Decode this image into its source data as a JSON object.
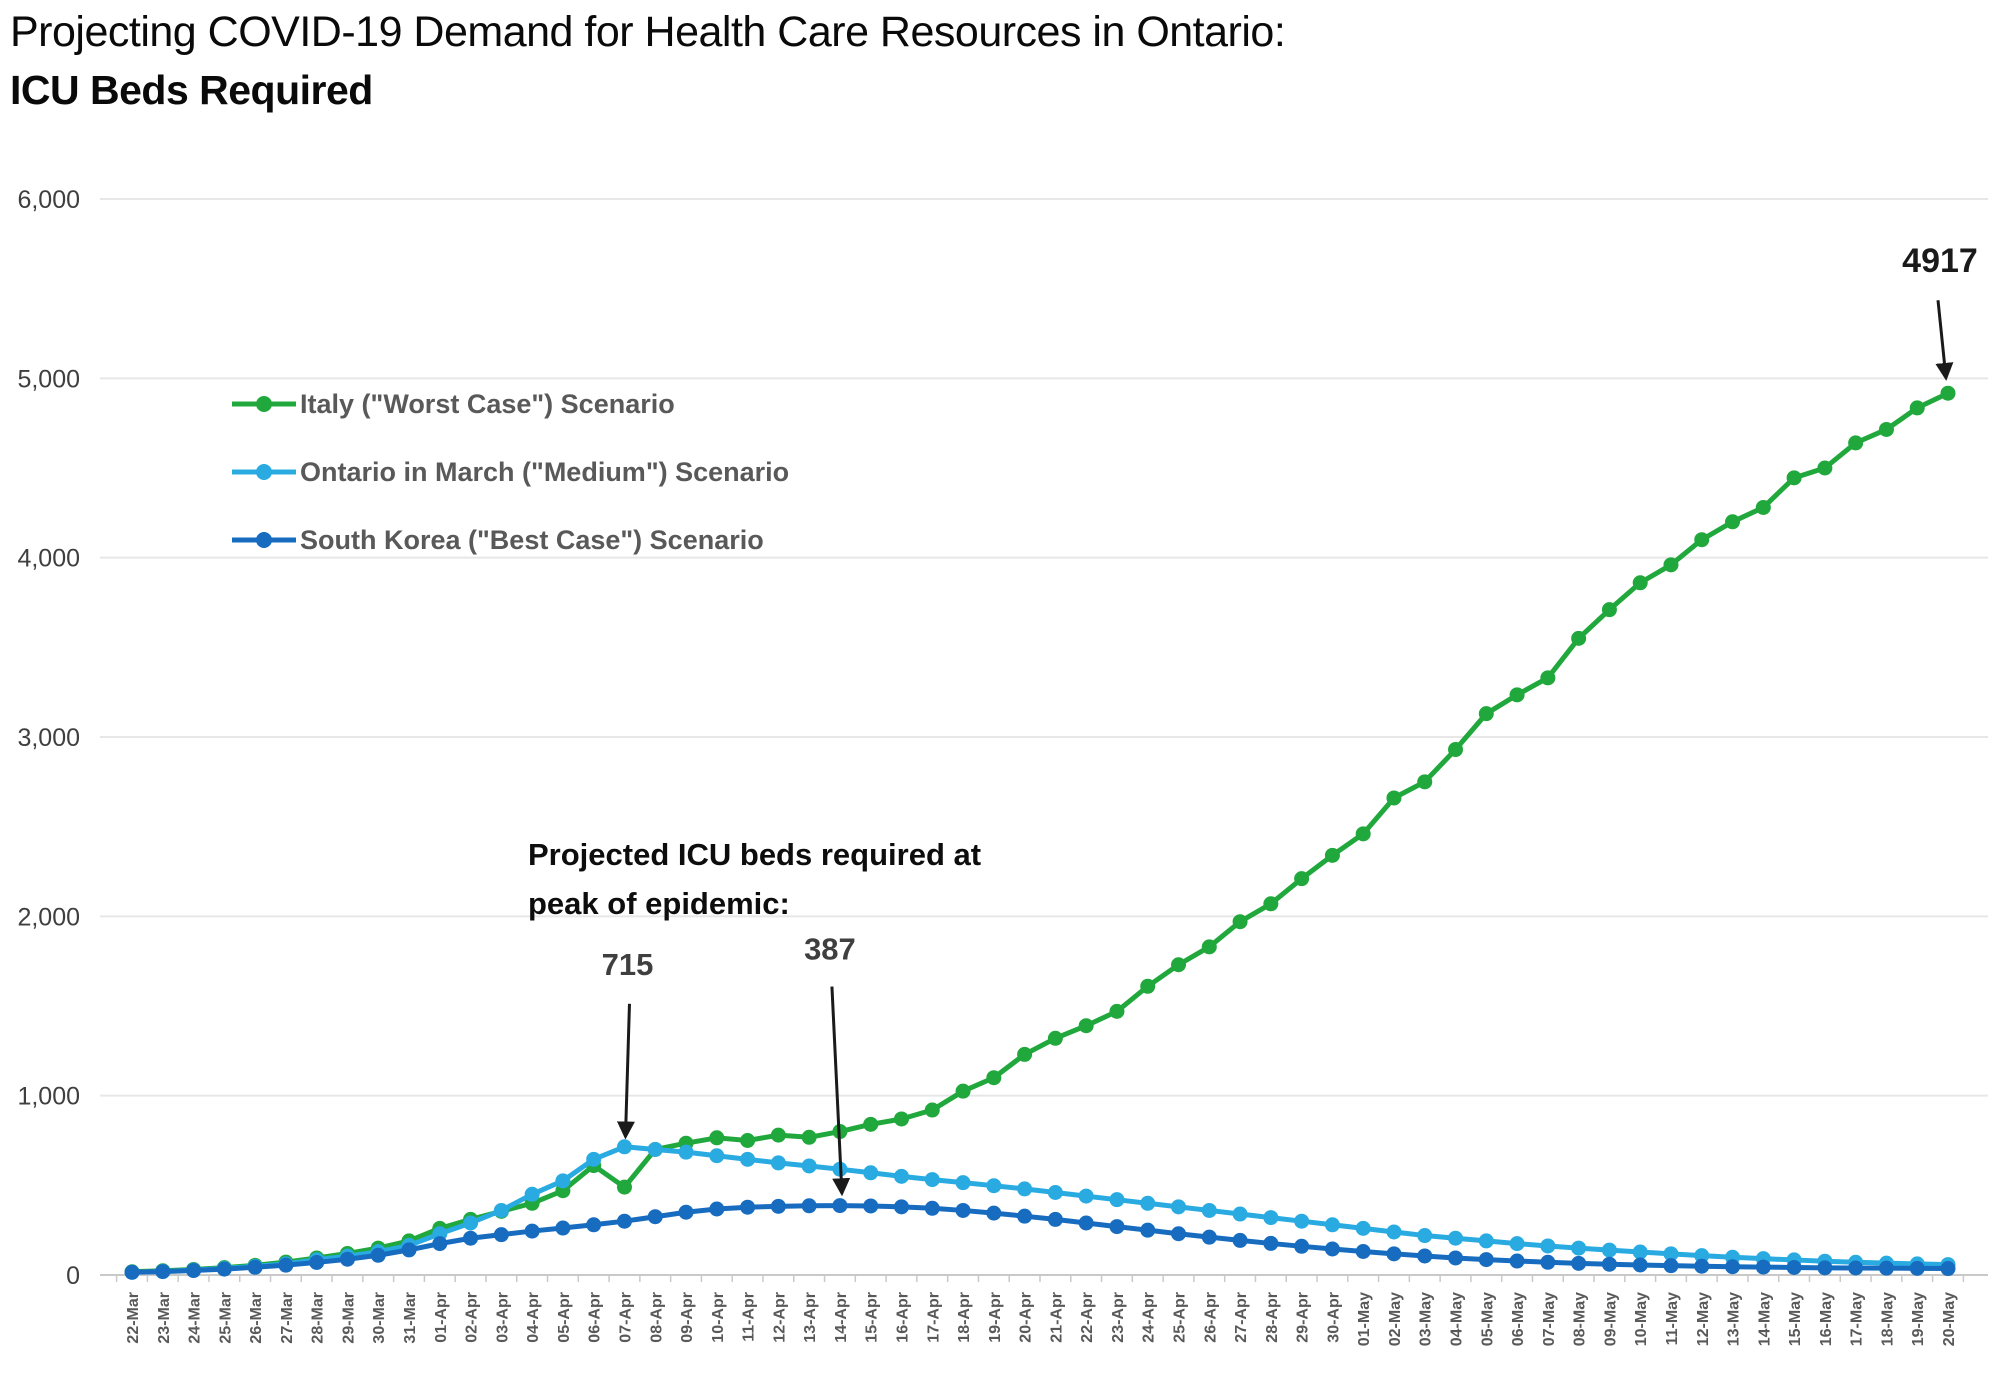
{
  "title": {
    "line1": "Projecting COVID-19 Demand for Health Care Resources in Ontario:",
    "line2": "ICU Beds Required"
  },
  "note": {
    "line1": "Projected ICU beds required at",
    "line2": "peak of epidemic:"
  },
  "chart_data": {
    "type": "line",
    "title": "Projecting COVID-19 Demand for Health Care Resources in Ontario: ICU Beds Required",
    "xlabel": "",
    "ylabel": "",
    "ylim": [
      0,
      6000
    ],
    "grid": true,
    "legend_position": "inside-top-left",
    "yticks": [
      "0",
      "1,000",
      "2,000",
      "3,000",
      "4,000",
      "5,000",
      "6,000"
    ],
    "x": [
      "22-Mar",
      "23-Mar",
      "24-Mar",
      "25-Mar",
      "26-Mar",
      "27-Mar",
      "28-Mar",
      "29-Mar",
      "30-Mar",
      "31-Mar",
      "01-Apr",
      "02-Apr",
      "03-Apr",
      "04-Apr",
      "05-Apr",
      "06-Apr",
      "07-Apr",
      "08-Apr",
      "09-Apr",
      "10-Apr",
      "11-Apr",
      "12-Apr",
      "13-Apr",
      "14-Apr",
      "15-Apr",
      "16-Apr",
      "17-Apr",
      "18-Apr",
      "19-Apr",
      "20-Apr",
      "21-Apr",
      "22-Apr",
      "23-Apr",
      "24-Apr",
      "25-Apr",
      "26-Apr",
      "27-Apr",
      "28-Apr",
      "29-Apr",
      "30-Apr",
      "01-May",
      "02-May",
      "03-May",
      "04-May",
      "05-May",
      "06-May",
      "07-May",
      "08-May",
      "09-May",
      "10-May",
      "11-May",
      "12-May",
      "13-May",
      "14-May",
      "15-May",
      "16-May",
      "17-May",
      "18-May",
      "19-May",
      "20-May"
    ],
    "series": [
      {
        "name": "Italy (\"Worst Case\") Scenario",
        "color": "#20A83C",
        "values": [
          18,
          24,
          31,
          41,
          54,
          72,
          95,
          120,
          150,
          190,
          260,
          310,
          355,
          400,
          470,
          610,
          490,
          700,
          735,
          765,
          750,
          780,
          768,
          800,
          840,
          870,
          920,
          1025,
          1100,
          1230,
          1320,
          1390,
          1470,
          1610,
          1730,
          1830,
          1970,
          2070,
          2210,
          2340,
          2460,
          2660,
          2750,
          2930,
          3130,
          3235,
          3330,
          3550,
          3710,
          3860,
          3960,
          4100,
          4200,
          4280,
          4445,
          4500,
          4640,
          4715,
          4835,
          4917
        ]
      },
      {
        "name": "Ontario in March (\"Medium\") Scenario",
        "color": "#29ABE2",
        "values": [
          15,
          20,
          27,
          36,
          48,
          62,
          85,
          105,
          130,
          165,
          230,
          290,
          360,
          450,
          525,
          645,
          715,
          700,
          685,
          665,
          645,
          625,
          608,
          590,
          570,
          550,
          532,
          515,
          498,
          480,
          460,
          440,
          420,
          400,
          380,
          360,
          340,
          320,
          300,
          280,
          260,
          240,
          220,
          205,
          190,
          175,
          162,
          150,
          139,
          128,
          118,
          108,
          99,
          91,
          84,
          77,
          71,
          66,
          62,
          58
        ]
      },
      {
        "name": "South Korea (\"Best Case\") Scenario",
        "color": "#176CC0",
        "values": [
          15,
          19,
          25,
          33,
          43,
          55,
          70,
          88,
          110,
          140,
          175,
          205,
          225,
          245,
          262,
          280,
          300,
          325,
          350,
          368,
          378,
          383,
          386,
          387,
          385,
          380,
          372,
          360,
          345,
          328,
          310,
          290,
          270,
          250,
          230,
          211,
          193,
          176,
          160,
          145,
          131,
          118,
          106,
          95,
          86,
          78,
          71,
          65,
          60,
          56,
          52,
          49,
          46,
          44,
          42,
          40,
          39,
          38,
          37,
          36
        ]
      }
    ],
    "annotations": [
      {
        "label": "4917",
        "series": 0,
        "index": 59
      },
      {
        "label": "715",
        "series": 1,
        "index": 16
      },
      {
        "label": "387",
        "series": 2,
        "index": 23
      }
    ]
  }
}
